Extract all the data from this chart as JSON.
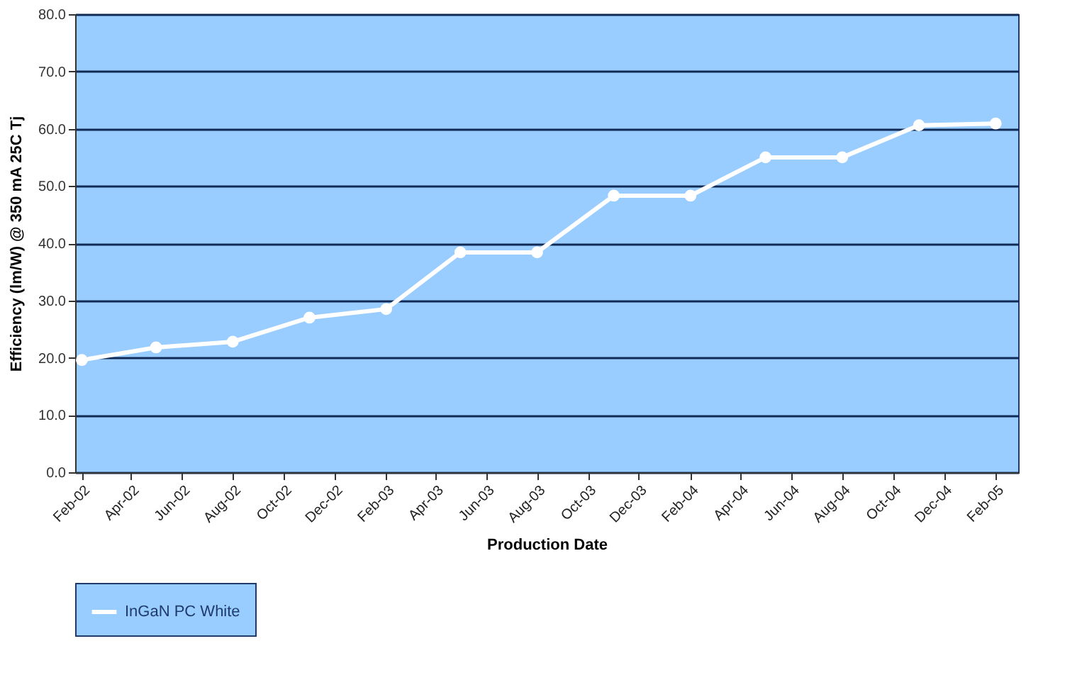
{
  "chart_data": {
    "type": "line",
    "xlabel": "Production Date",
    "ylabel": "Efficiency (lm/W) @ 350 mA 25C Tj",
    "x": [
      "2002-02",
      "2002-05",
      "2002-08",
      "2002-11",
      "2003-02",
      "2003-05",
      "2003-08",
      "2003-11",
      "2004-02",
      "2004-05",
      "2004-08",
      "2004-11",
      "2005-02"
    ],
    "series": [
      {
        "name": "InGaN PC White",
        "color": "#ffffff",
        "values": [
          19.6,
          21.8,
          22.8,
          27.0,
          28.5,
          38.4,
          38.4,
          48.3,
          48.3,
          55.0,
          55.0,
          60.6,
          60.9
        ]
      }
    ],
    "xlim": [
      "2002-01-24",
      "2005-02-28"
    ],
    "xticks": [
      {
        "value": "2002-02",
        "label": "Feb-02"
      },
      {
        "value": "2002-04",
        "label": "Apr-02"
      },
      {
        "value": "2002-06",
        "label": "Jun-02"
      },
      {
        "value": "2002-08",
        "label": "Aug-02"
      },
      {
        "value": "2002-10",
        "label": "Oct-02"
      },
      {
        "value": "2002-12",
        "label": "Dec-02"
      },
      {
        "value": "2003-02",
        "label": "Feb-03"
      },
      {
        "value": "2003-04",
        "label": "Apr-03"
      },
      {
        "value": "2003-06",
        "label": "Jun-03"
      },
      {
        "value": "2003-08",
        "label": "Aug-03"
      },
      {
        "value": "2003-10",
        "label": "Oct-03"
      },
      {
        "value": "2003-12",
        "label": "Dec-03"
      },
      {
        "value": "2004-02",
        "label": "Feb-04"
      },
      {
        "value": "2004-04",
        "label": "Apr-04"
      },
      {
        "value": "2004-06",
        "label": "Jun-04"
      },
      {
        "value": "2004-08",
        "label": "Aug-04"
      },
      {
        "value": "2004-10",
        "label": "Oct-04"
      },
      {
        "value": "2004-12",
        "label": "Dec-04"
      },
      {
        "value": "2005-02",
        "label": "Feb-05"
      }
    ],
    "ylim": [
      0,
      80
    ],
    "yticks": [
      {
        "value": 0,
        "label": "0.0"
      },
      {
        "value": 10,
        "label": "10.0"
      },
      {
        "value": 20,
        "label": "20.0"
      },
      {
        "value": 30,
        "label": "30.0"
      },
      {
        "value": 40,
        "label": "40.0"
      },
      {
        "value": 50,
        "label": "50.0"
      },
      {
        "value": 60,
        "label": "60.0"
      },
      {
        "value": 70,
        "label": "70.0"
      },
      {
        "value": 80,
        "label": "80.0"
      }
    ],
    "grid": "y",
    "legend": "bottom",
    "marker": "circle",
    "line_style": "solid"
  }
}
